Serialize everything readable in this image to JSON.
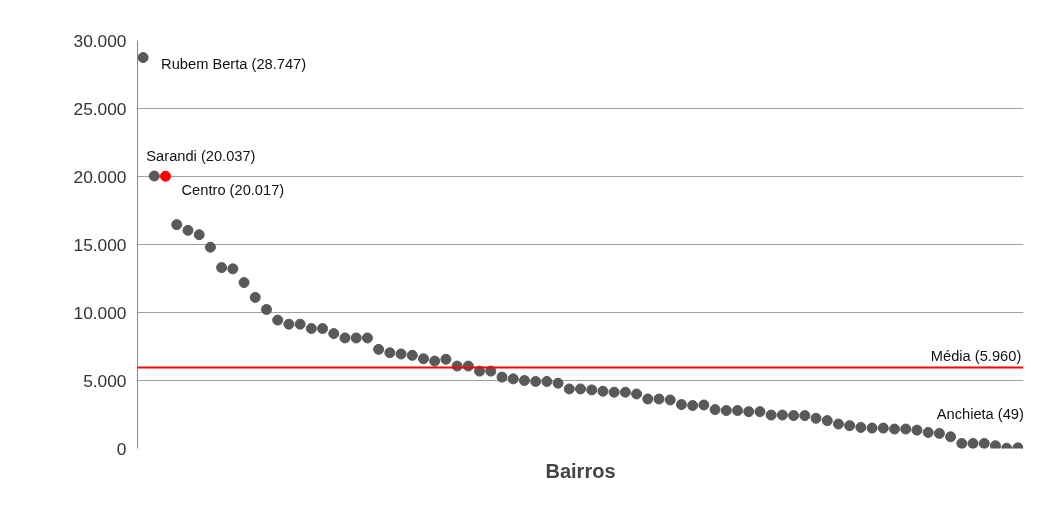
{
  "chart_data": {
    "type": "scatter",
    "xlabel": "Bairros",
    "categories": [
      null,
      null,
      null,
      null,
      null,
      null,
      null,
      null,
      null,
      null,
      null,
      null,
      null,
      null,
      null,
      null,
      null,
      null,
      null,
      null,
      null,
      null,
      null,
      null,
      null,
      null,
      null,
      null,
      null,
      null,
      null,
      null,
      null,
      null,
      null,
      null,
      null,
      null,
      null,
      null,
      null,
      null,
      null,
      null,
      null,
      null,
      null,
      null,
      null,
      null,
      null,
      null,
      null,
      null,
      null,
      null,
      null,
      null,
      null,
      null,
      null,
      null,
      null,
      null,
      null,
      null,
      null,
      null,
      null,
      null,
      null,
      null,
      null,
      null,
      null,
      null,
      null,
      null,
      null
    ],
    "values": [
      28747,
      20037,
      20017,
      16460,
      16040,
      15720,
      14800,
      13300,
      13210,
      12200,
      11110,
      10220,
      9440,
      9140,
      9140,
      8820,
      8820,
      8450,
      8130,
      8130,
      8130,
      7290,
      7040,
      6950,
      6850,
      6600,
      6430,
      6560,
      6060,
      6060,
      5690,
      5690,
      5250,
      5120,
      5000,
      4930,
      4930,
      4800,
      4380,
      4380,
      4310,
      4210,
      4140,
      4140,
      4010,
      3640,
      3640,
      3570,
      3230,
      3160,
      3200,
      2860,
      2790,
      2790,
      2710,
      2710,
      2460,
      2460,
      2420,
      2420,
      2220,
      2050,
      1800,
      1680,
      1550,
      1500,
      1500,
      1430,
      1430,
      1350,
      1180,
      1110,
      860,
      370,
      370,
      370,
      200,
      20,
      49
    ],
    "colors": [
      "#595959",
      "#595959",
      "#ff0000",
      "#595959",
      "#595959",
      "#595959",
      "#595959",
      "#595959",
      "#595959",
      "#595959",
      "#595959",
      "#595959",
      "#595959",
      "#595959",
      "#595959",
      "#595959",
      "#595959",
      "#595959",
      "#595959",
      "#595959",
      "#595959",
      "#595959",
      "#595959",
      "#595959",
      "#595959",
      "#595959",
      "#595959",
      "#595959",
      "#595959",
      "#595959",
      "#595959",
      "#595959",
      "#595959",
      "#595959",
      "#595959",
      "#595959",
      "#595959",
      "#595959",
      "#595959",
      "#595959",
      "#595959",
      "#595959",
      "#595959",
      "#595959",
      "#595959",
      "#595959",
      "#595959",
      "#595959",
      "#595959",
      "#595959",
      "#595959",
      "#595959",
      "#595959",
      "#595959",
      "#595959",
      "#595959",
      "#595959",
      "#595959",
      "#595959",
      "#595959",
      "#595959",
      "#595959",
      "#595959",
      "#595959",
      "#595959",
      "#595959",
      "#595959",
      "#595959",
      "#595959",
      "#595959",
      "#595959",
      "#595959",
      "#595959",
      "#595959",
      "#595959",
      "#595959",
      "#595959",
      "#595959",
      "#595959"
    ],
    "marker": "circle",
    "ylim": [
      0,
      30000
    ],
    "yticks": [
      0,
      {
        "value": 5000,
        "label": "5.000"
      },
      {
        "value": 10000,
        "label": "10.000"
      },
      {
        "value": 15000,
        "label": "15.000"
      },
      {
        "value": 20000,
        "label": "20.000"
      },
      {
        "value": 25000,
        "label": "25.000"
      },
      {
        "value": 30000,
        "label": "30.000"
      }
    ],
    "grid": "y",
    "tick_labels": "y",
    "ref_lines": [
      {
        "axis": "y",
        "value": 5960,
        "label": "Média (5.960)",
        "color": "#ff0000"
      }
    ],
    "annotations": [
      "Rubem Berta (28.747)",
      "Sarandi (20.037)",
      "Centro (20.017)",
      "Anchieta (49)"
    ]
  }
}
